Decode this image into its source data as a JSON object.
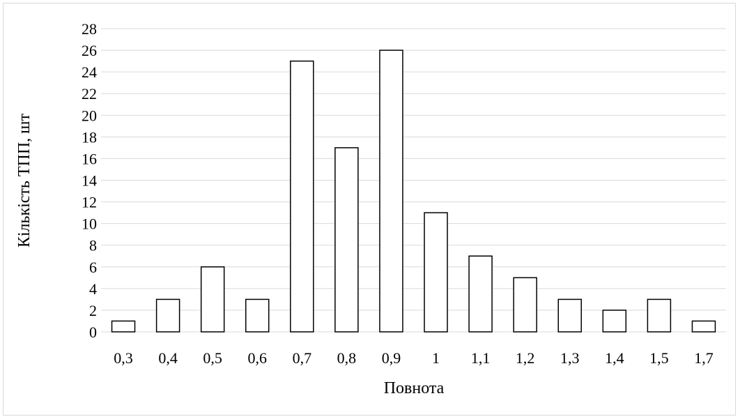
{
  "chart_data": {
    "type": "bar",
    "categories": [
      "0,3",
      "0,4",
      "0,5",
      "0,6",
      "0,7",
      "0,8",
      "0,9",
      "1",
      "1,1",
      "1,2",
      "1,3",
      "1,4",
      "1,5",
      "1,7"
    ],
    "values": [
      1,
      3,
      6,
      3,
      25,
      17,
      26,
      11,
      7,
      5,
      3,
      2,
      3,
      1
    ],
    "xlabel": "Повнота",
    "ylabel": "Кількість ТПП, шт",
    "ylim": [
      0,
      28
    ],
    "ytick_step": 2,
    "grid": true,
    "colors": {
      "bar_fill": "#ffffff",
      "bar_stroke": "#000000",
      "grid": "#d9d9d9"
    }
  }
}
